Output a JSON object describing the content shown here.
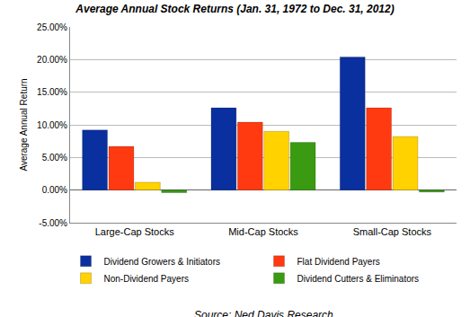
{
  "chart_data": {
    "type": "bar",
    "title": "Average Annual Stock Returns (Jan. 31, 1972 to Dec. 31, 2012)",
    "y_label": "Average Annual Return",
    "annotations": [
      "Source: Ned Davis Research"
    ],
    "categories": [
      "Large-Cap Stocks",
      "Mid-Cap Stocks",
      "Small-Cap Stocks"
    ],
    "series": [
      {
        "name": "Dividend Growers & Initiators",
        "color": "#0a2f9e",
        "values": [
          9.2,
          12.6,
          20.4
        ]
      },
      {
        "name": "Flat Dividend Payers",
        "color": "#ff3a10",
        "values": [
          6.7,
          10.4,
          12.6
        ]
      },
      {
        "name": "Non-Dividend Payers",
        "color": "#ffd200",
        "values": [
          1.2,
          9.0,
          8.2
        ]
      },
      {
        "name": "Dividend Cutters & Eliminators",
        "color": "#3a9a12",
        "values": [
          -0.4,
          7.3,
          -0.3
        ]
      }
    ],
    "ylim": [
      -5,
      25
    ],
    "yticks": [
      {
        "value": -5,
        "label": "-5.00%"
      },
      {
        "value": 0,
        "label": "0.00%"
      },
      {
        "value": 5,
        "label": "5.00%"
      },
      {
        "value": 10,
        "label": "10.00%"
      },
      {
        "value": 15,
        "label": "15.00%"
      },
      {
        "value": 20,
        "label": "20.00%"
      },
      {
        "value": 25,
        "label": "25.00%"
      }
    ],
    "grid": true,
    "legend": "bottom"
  }
}
